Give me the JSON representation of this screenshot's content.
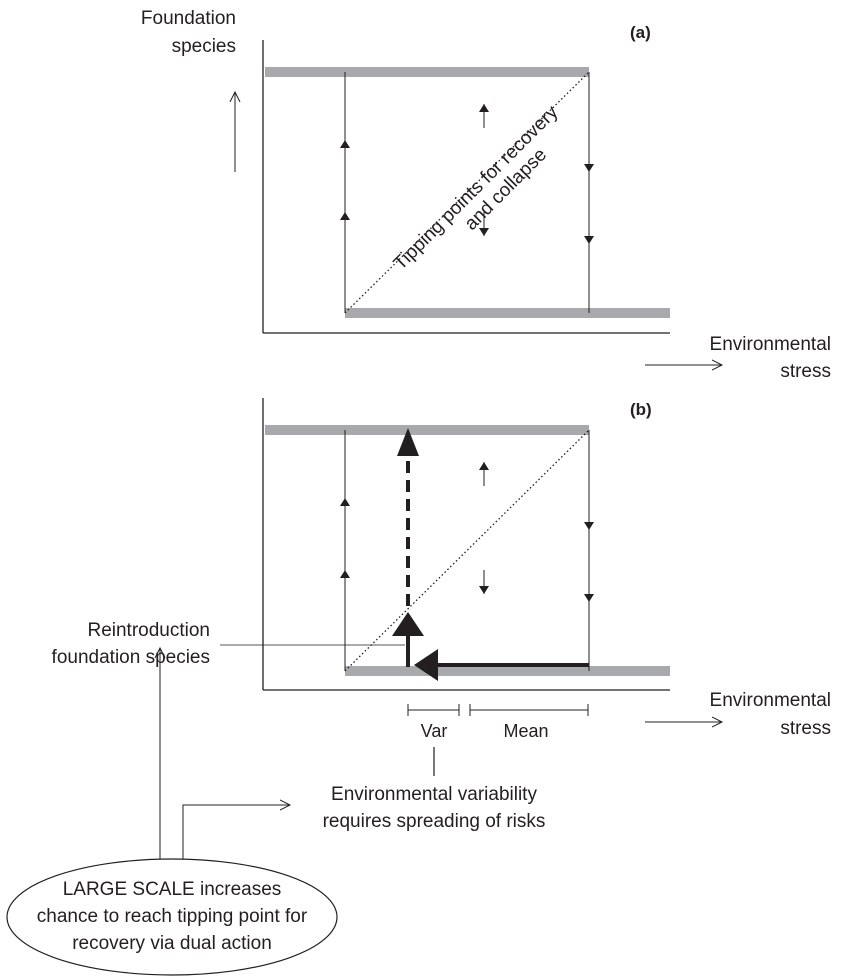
{
  "axes": {
    "y_label_line1": "Foundation",
    "y_label_line2": "species",
    "x_label_line1": "Environmental",
    "x_label_line2": "stress"
  },
  "panels": {
    "a": {
      "label": "(a)"
    },
    "b": {
      "label": "(b)"
    }
  },
  "annotations": {
    "tipping_line1": "Tipping points for recovery",
    "tipping_line2": "and collapse",
    "reintro_line1": "Reintroduction",
    "reintro_line2": "foundation species",
    "var_label": "Var",
    "mean_label": "Mean",
    "envvar_line1": "Environmental variability",
    "envvar_line2": "requires spreading of risks",
    "ellipse_line1": "LARGE SCALE increases",
    "ellipse_line2": "chance to reach tipping point for",
    "ellipse_line3": "recovery via dual action"
  },
  "colors": {
    "state_bar": "#a7a9ac",
    "ink": "#231f20"
  }
}
